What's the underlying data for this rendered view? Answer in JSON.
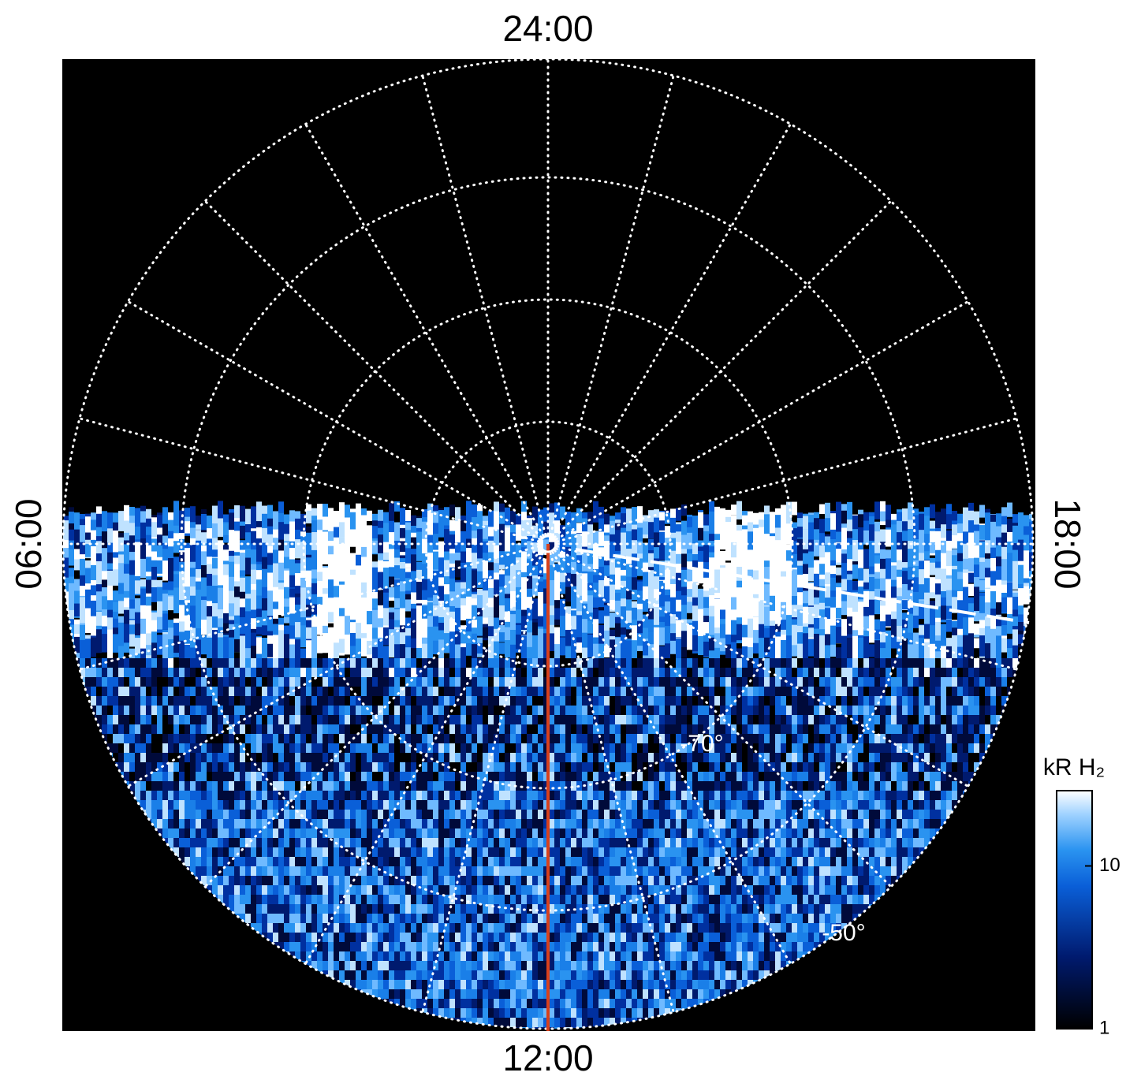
{
  "labels": {
    "top": "24:00",
    "bottom": "12:00",
    "left": "06:00",
    "right": "18:00"
  },
  "latitude_labels": [
    "-70°",
    "-50°"
  ],
  "colorbar": {
    "title": "kR H₂",
    "scale": "log",
    "lim": [
      1,
      29
    ],
    "ticks": [
      1,
      10
    ]
  }
}
